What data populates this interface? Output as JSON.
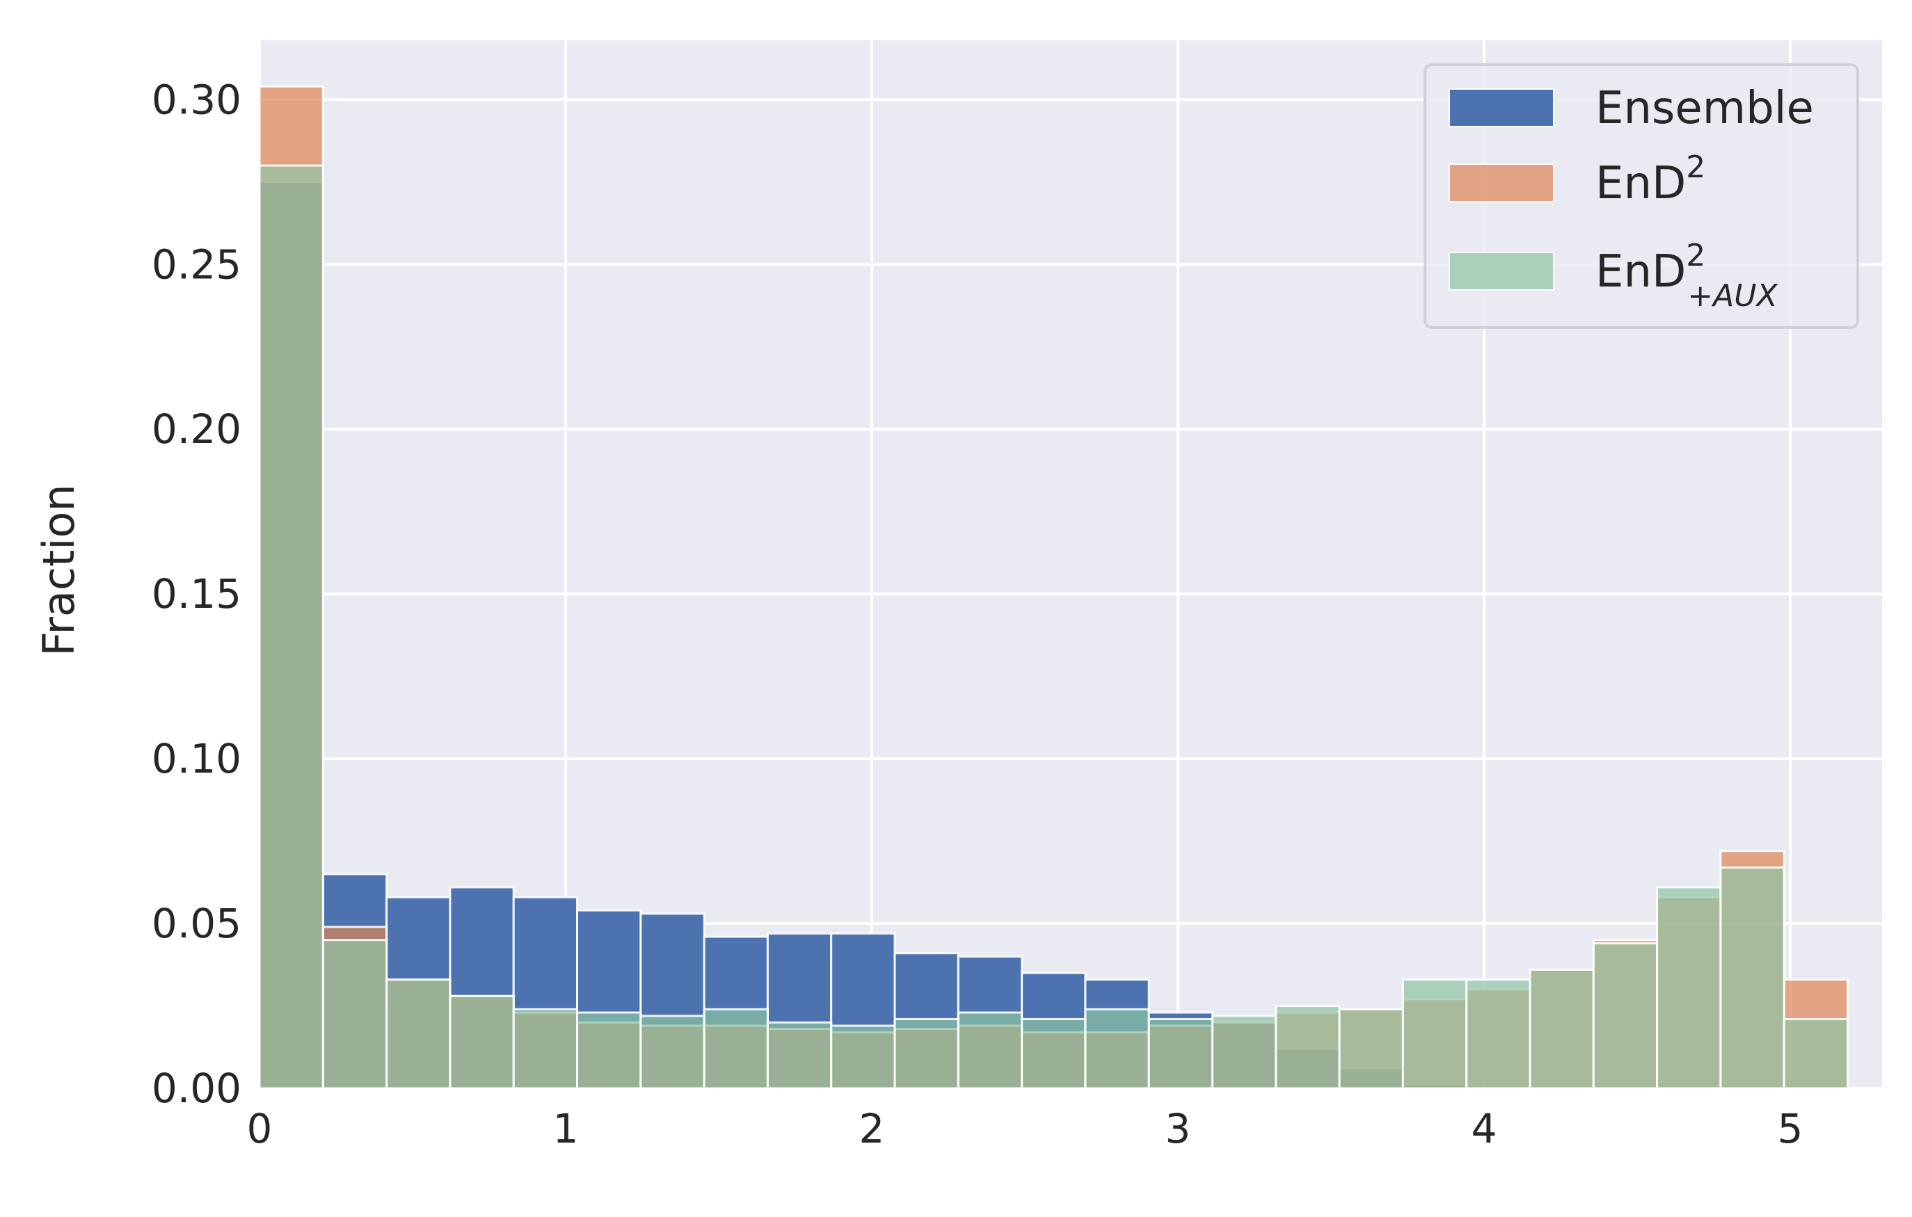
{
  "chart_data": {
    "type": "bar",
    "title": "",
    "xlabel": "",
    "ylabel": "Fraction",
    "xlim": [
      0,
      5.3
    ],
    "ylim": [
      0,
      0.318
    ],
    "x_ticks": [
      0,
      1,
      2,
      3,
      4,
      5
    ],
    "y_ticks": [
      0.0,
      0.05,
      0.1,
      0.15,
      0.2,
      0.25,
      0.3
    ],
    "y_tick_labels": [
      "0.00",
      "0.05",
      "0.10",
      "0.15",
      "0.20",
      "0.25",
      "0.30"
    ],
    "grid": true,
    "legend_position": "top-right",
    "bin_width": 0.2075,
    "bin_edges": [
      0,
      0.2075,
      0.415,
      0.6225,
      0.83,
      1.0375,
      1.245,
      1.4525,
      1.66,
      1.8675,
      2.075,
      2.2825,
      2.49,
      2.6975,
      2.905,
      3.1125,
      3.32,
      3.5275,
      3.735,
      3.9425,
      4.15,
      4.3575,
      4.565,
      4.7725,
      4.98,
      5.1875
    ],
    "series": [
      {
        "name": "Ensemble",
        "color": "#4c72b0",
        "opacity": 1.0,
        "values": [
          0.275,
          0.065,
          0.058,
          0.061,
          0.058,
          0.054,
          0.053,
          0.046,
          0.047,
          0.047,
          0.041,
          0.04,
          0.035,
          0.033,
          0.023,
          0.02,
          0.012,
          0.006,
          0.001,
          0.0,
          0.0,
          0.0,
          0.0,
          0.0,
          0.0
        ]
      },
      {
        "name": "EnD",
        "name_sup": "2",
        "color": "#dd8452",
        "opacity": 0.7,
        "values": [
          0.304,
          0.049,
          0.033,
          0.028,
          0.023,
          0.02,
          0.019,
          0.019,
          0.018,
          0.017,
          0.018,
          0.019,
          0.017,
          0.017,
          0.019,
          0.02,
          0.023,
          0.024,
          0.027,
          0.03,
          0.036,
          0.045,
          0.058,
          0.072,
          0.033
        ]
      },
      {
        "name": "EnD",
        "name_sup": "2",
        "name_sub": "+AUX",
        "color": "#8fc4a4",
        "opacity": 0.7,
        "values": [
          0.28,
          0.045,
          0.033,
          0.028,
          0.024,
          0.023,
          0.022,
          0.024,
          0.02,
          0.019,
          0.021,
          0.023,
          0.021,
          0.024,
          0.021,
          0.022,
          0.025,
          0.024,
          0.033,
          0.033,
          0.036,
          0.044,
          0.061,
          0.067,
          0.021
        ]
      }
    ]
  }
}
